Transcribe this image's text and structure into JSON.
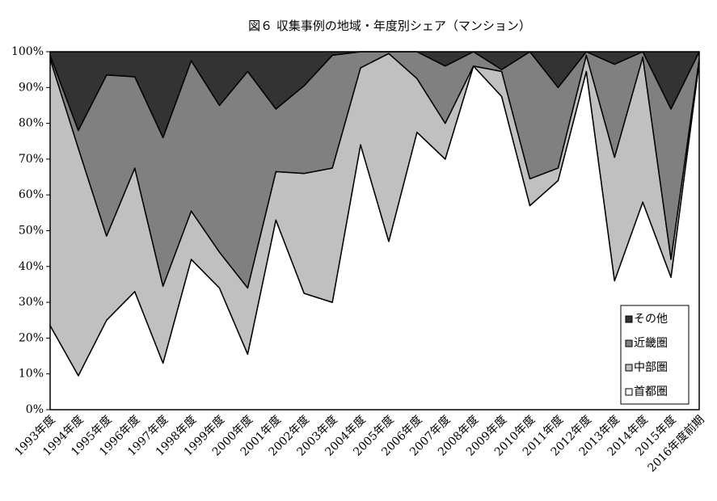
{
  "chart_data": {
    "type": "stacked_area",
    "title": "図６ 収集事例の地域・年度別シェア（マンション）",
    "categories": [
      "1993年度",
      "1994年度",
      "1995年度",
      "1996年度",
      "1997年度",
      "1998年度",
      "1999年度",
      "2000年度",
      "2001年度",
      "2002年度",
      "2003年度",
      "2004年度",
      "2005年度",
      "2006年度",
      "2007年度",
      "2008年度",
      "2009年度",
      "2010年度",
      "2011年度",
      "2012年度",
      "2013年度",
      "2014年度",
      "2015年度",
      "2016年度前期"
    ],
    "series": [
      {
        "name": "首都圏",
        "color": "#ffffff",
        "values": [
          23.5,
          9.5,
          25,
          33,
          13,
          42,
          34,
          15.5,
          53,
          32.5,
          30,
          74,
          47,
          77.5,
          70,
          96,
          87.5,
          57,
          64,
          94.5,
          36,
          58,
          37,
          97
        ]
      },
      {
        "name": "中部圏",
        "color": "#c0c0c0",
        "values": [
          74.5,
          63.5,
          23.5,
          34.5,
          21.5,
          13.5,
          10,
          18.5,
          13.5,
          33.5,
          37.5,
          21.5,
          52.5,
          15,
          10,
          0,
          7,
          7.5,
          3.5,
          4.5,
          34.5,
          40.5,
          5,
          1
        ]
      },
      {
        "name": "近畿圏",
        "color": "#808080",
        "values": [
          1,
          5,
          45,
          25.5,
          41.5,
          42,
          41,
          60.5,
          17.5,
          24.5,
          31.5,
          4.5,
          0.5,
          7.5,
          16,
          4,
          0.5,
          35.5,
          22.5,
          1,
          26,
          1.5,
          42,
          2
        ]
      },
      {
        "name": "その他",
        "color": "#333333",
        "values": [
          1,
          22,
          6.5,
          7,
          24,
          2.5,
          15,
          5.5,
          16,
          9.5,
          1,
          0,
          0,
          0,
          4,
          0,
          5,
          0,
          10,
          0,
          3.5,
          0,
          16,
          0
        ]
      }
    ],
    "ylim": [
      0,
      100
    ],
    "yticks": [
      {
        "value": 0,
        "label": "0%"
      },
      {
        "value": 10,
        "label": "10%"
      },
      {
        "value": 20,
        "label": "20%"
      },
      {
        "value": 30,
        "label": "30%"
      },
      {
        "value": 40,
        "label": "40%"
      },
      {
        "value": 50,
        "label": "50%"
      },
      {
        "value": 60,
        "label": "60%"
      },
      {
        "value": 70,
        "label": "70%"
      },
      {
        "value": 80,
        "label": "80%"
      },
      {
        "value": 90,
        "label": "90%"
      },
      {
        "value": 100,
        "label": "100%"
      }
    ],
    "legend": "lower right"
  }
}
